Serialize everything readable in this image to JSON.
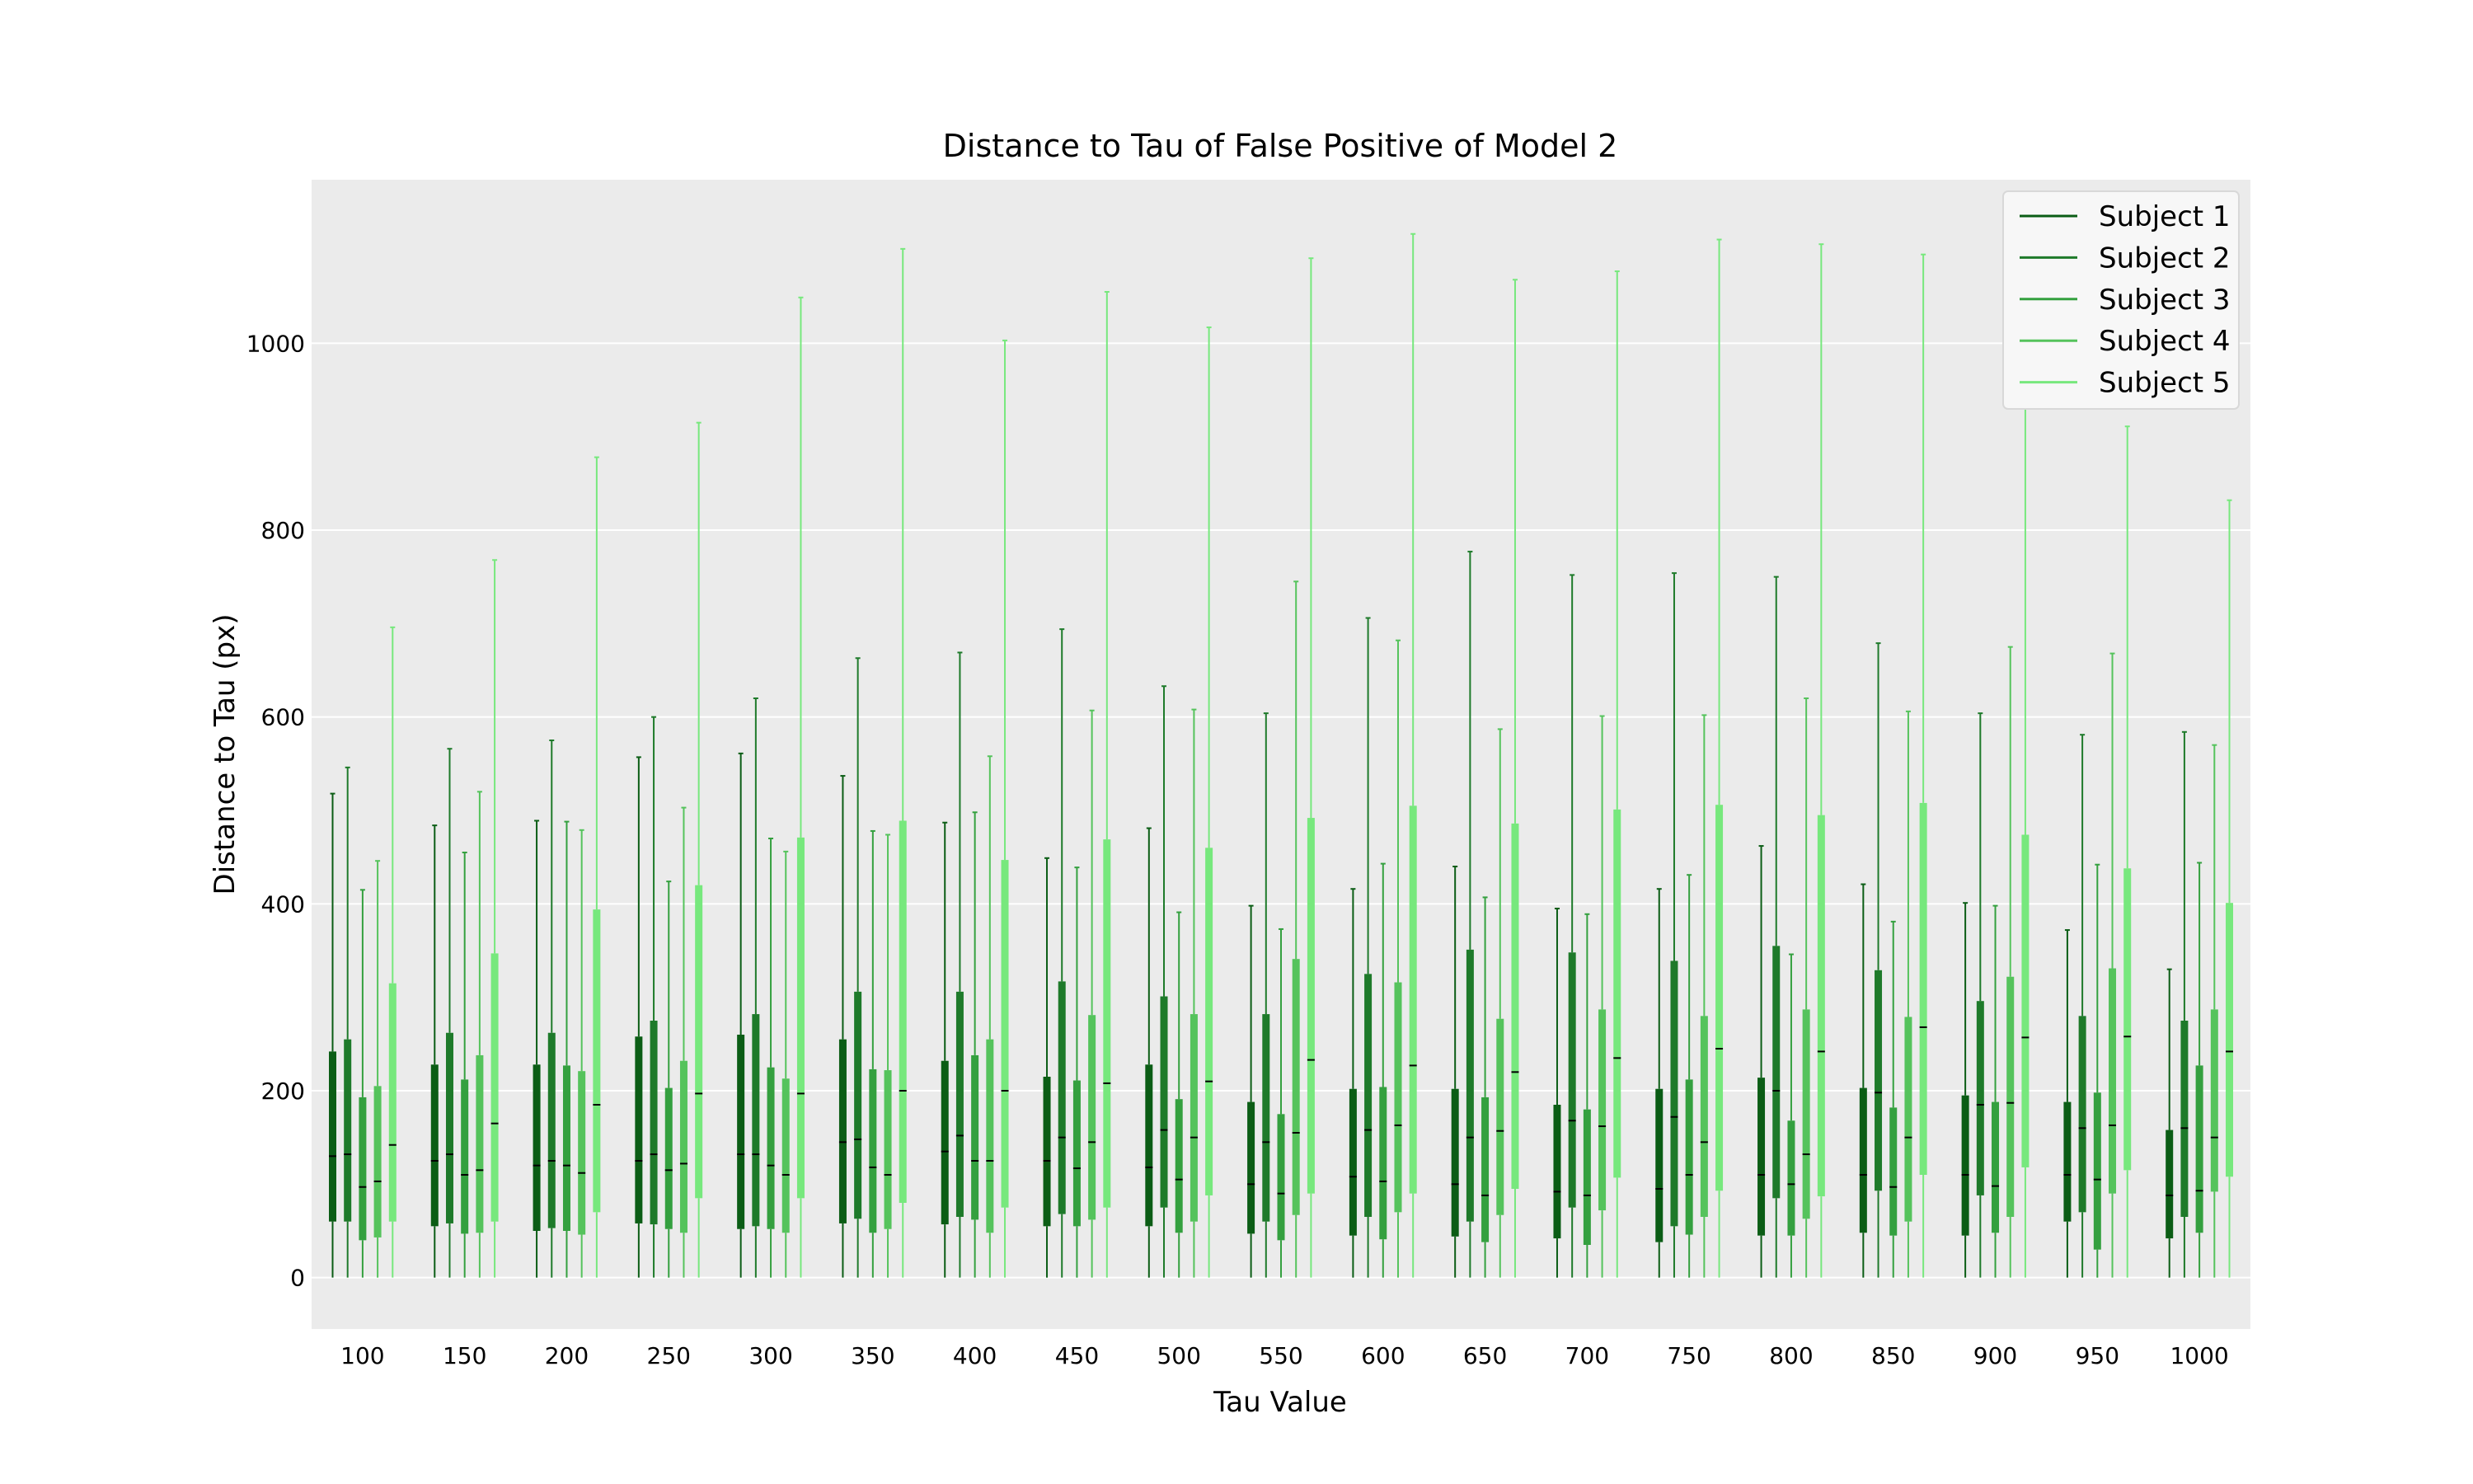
{
  "chart_data": {
    "type": "boxplot",
    "title": "Distance to Tau of False Positive of Model 2",
    "xlabel": "Tau Value",
    "ylabel": "Distance to Tau (px)",
    "ylim": [
      -55,
      1175
    ],
    "yticks": [
      0,
      200,
      400,
      600,
      800,
      1000
    ],
    "grid": true,
    "legend_position": "top-right",
    "categories": [
      "100",
      "150",
      "200",
      "250",
      "300",
      "350",
      "400",
      "450",
      "500",
      "550",
      "600",
      "650",
      "700",
      "750",
      "800",
      "850",
      "900",
      "950",
      "1000"
    ],
    "series": [
      {
        "name": "Subject 1",
        "color": "#0b5d15",
        "boxes": [
          {
            "whislo": 0,
            "q1": 60,
            "med": 130,
            "q3": 242,
            "whishi": 518
          },
          {
            "whislo": 0,
            "q1": 55,
            "med": 125,
            "q3": 228,
            "whishi": 484
          },
          {
            "whislo": 0,
            "q1": 50,
            "med": 120,
            "q3": 228,
            "whishi": 489
          },
          {
            "whislo": 0,
            "q1": 58,
            "med": 125,
            "q3": 258,
            "whishi": 557
          },
          {
            "whislo": 0,
            "q1": 52,
            "med": 132,
            "q3": 260,
            "whishi": 561
          },
          {
            "whislo": 0,
            "q1": 58,
            "med": 145,
            "q3": 255,
            "whishi": 537
          },
          {
            "whislo": 0,
            "q1": 57,
            "med": 135,
            "q3": 232,
            "whishi": 487
          },
          {
            "whislo": 0,
            "q1": 55,
            "med": 125,
            "q3": 215,
            "whishi": 449
          },
          {
            "whislo": 0,
            "q1": 55,
            "med": 118,
            "q3": 228,
            "whishi": 481
          },
          {
            "whislo": 0,
            "q1": 47,
            "med": 100,
            "q3": 188,
            "whishi": 398
          },
          {
            "whislo": 0,
            "q1": 45,
            "med": 108,
            "q3": 202,
            "whishi": 416
          },
          {
            "whislo": 0,
            "q1": 44,
            "med": 100,
            "q3": 202,
            "whishi": 440
          },
          {
            "whislo": 0,
            "q1": 42,
            "med": 92,
            "q3": 185,
            "whishi": 395
          },
          {
            "whislo": 0,
            "q1": 38,
            "med": 95,
            "q3": 202,
            "whishi": 416
          },
          {
            "whislo": 0,
            "q1": 45,
            "med": 110,
            "q3": 214,
            "whishi": 462
          },
          {
            "whislo": 0,
            "q1": 48,
            "med": 110,
            "q3": 203,
            "whishi": 421
          },
          {
            "whislo": 0,
            "q1": 45,
            "med": 110,
            "q3": 195,
            "whishi": 401
          },
          {
            "whislo": 0,
            "q1": 60,
            "med": 110,
            "q3": 188,
            "whishi": 372
          },
          {
            "whislo": 0,
            "q1": 42,
            "med": 88,
            "q3": 158,
            "whishi": 330
          }
        ]
      },
      {
        "name": "Subject 2",
        "color": "#1e7a2a",
        "boxes": [
          {
            "whislo": 0,
            "q1": 60,
            "med": 132,
            "q3": 255,
            "whishi": 546
          },
          {
            "whislo": 0,
            "q1": 58,
            "med": 132,
            "q3": 262,
            "whishi": 566
          },
          {
            "whislo": 0,
            "q1": 53,
            "med": 125,
            "q3": 262,
            "whishi": 575
          },
          {
            "whislo": 0,
            "q1": 57,
            "med": 132,
            "q3": 275,
            "whishi": 600
          },
          {
            "whislo": 0,
            "q1": 55,
            "med": 132,
            "q3": 282,
            "whishi": 620
          },
          {
            "whislo": 0,
            "q1": 63,
            "med": 148,
            "q3": 306,
            "whishi": 663
          },
          {
            "whislo": 0,
            "q1": 65,
            "med": 152,
            "q3": 306,
            "whishi": 669
          },
          {
            "whislo": 0,
            "q1": 68,
            "med": 150,
            "q3": 317,
            "whishi": 694
          },
          {
            "whislo": 0,
            "q1": 75,
            "med": 158,
            "q3": 301,
            "whishi": 633
          },
          {
            "whislo": 0,
            "q1": 60,
            "med": 145,
            "q3": 282,
            "whishi": 604
          },
          {
            "whislo": 0,
            "q1": 65,
            "med": 158,
            "q3": 325,
            "whishi": 706
          },
          {
            "whislo": 0,
            "q1": 60,
            "med": 150,
            "q3": 351,
            "whishi": 777
          },
          {
            "whislo": 0,
            "q1": 75,
            "med": 168,
            "q3": 348,
            "whishi": 752
          },
          {
            "whislo": 0,
            "q1": 55,
            "med": 172,
            "q3": 339,
            "whishi": 754
          },
          {
            "whislo": 0,
            "q1": 85,
            "med": 200,
            "q3": 355,
            "whishi": 750
          },
          {
            "whislo": 0,
            "q1": 93,
            "med": 198,
            "q3": 329,
            "whishi": 679
          },
          {
            "whislo": 0,
            "q1": 88,
            "med": 185,
            "q3": 296,
            "whishi": 604
          },
          {
            "whislo": 0,
            "q1": 70,
            "med": 160,
            "q3": 280,
            "whishi": 581
          },
          {
            "whislo": 0,
            "q1": 65,
            "med": 160,
            "q3": 275,
            "whishi": 584
          }
        ]
      },
      {
        "name": "Subject 3",
        "color": "#34a03f",
        "boxes": [
          {
            "whislo": 0,
            "q1": 40,
            "med": 97,
            "q3": 193,
            "whishi": 415
          },
          {
            "whislo": 0,
            "q1": 47,
            "med": 110,
            "q3": 212,
            "whishi": 455
          },
          {
            "whislo": 0,
            "q1": 50,
            "med": 120,
            "q3": 227,
            "whishi": 488
          },
          {
            "whislo": 0,
            "q1": 52,
            "med": 115,
            "q3": 203,
            "whishi": 424
          },
          {
            "whislo": 0,
            "q1": 52,
            "med": 120,
            "q3": 225,
            "whishi": 470
          },
          {
            "whislo": 0,
            "q1": 48,
            "med": 118,
            "q3": 223,
            "whishi": 478
          },
          {
            "whislo": 0,
            "q1": 62,
            "med": 125,
            "q3": 238,
            "whishi": 498
          },
          {
            "whislo": 0,
            "q1": 55,
            "med": 117,
            "q3": 211,
            "whishi": 439
          },
          {
            "whislo": 0,
            "q1": 48,
            "med": 105,
            "q3": 191,
            "whishi": 391
          },
          {
            "whislo": 0,
            "q1": 40,
            "med": 90,
            "q3": 175,
            "whishi": 373
          },
          {
            "whislo": 0,
            "q1": 41,
            "med": 103,
            "q3": 204,
            "whishi": 443
          },
          {
            "whislo": 0,
            "q1": 38,
            "med": 88,
            "q3": 193,
            "whishi": 407
          },
          {
            "whislo": 0,
            "q1": 35,
            "med": 88,
            "q3": 180,
            "whishi": 389
          },
          {
            "whislo": 0,
            "q1": 46,
            "med": 110,
            "q3": 212,
            "whishi": 431
          },
          {
            "whislo": 0,
            "q1": 45,
            "med": 100,
            "q3": 168,
            "whishi": 346
          },
          {
            "whislo": 0,
            "q1": 45,
            "med": 97,
            "q3": 182,
            "whishi": 381
          },
          {
            "whislo": 0,
            "q1": 48,
            "med": 98,
            "q3": 188,
            "whishi": 398
          },
          {
            "whislo": 0,
            "q1": 30,
            "med": 105,
            "q3": 198,
            "whishi": 442
          },
          {
            "whislo": 0,
            "q1": 48,
            "med": 93,
            "q3": 227,
            "whishi": 444
          }
        ]
      },
      {
        "name": "Subject 4",
        "color": "#55c35c",
        "boxes": [
          {
            "whislo": 0,
            "q1": 43,
            "med": 103,
            "q3": 205,
            "whishi": 446
          },
          {
            "whislo": 0,
            "q1": 48,
            "med": 115,
            "q3": 238,
            "whishi": 520
          },
          {
            "whislo": 0,
            "q1": 46,
            "med": 112,
            "q3": 221,
            "whishi": 479
          },
          {
            "whislo": 0,
            "q1": 48,
            "med": 122,
            "q3": 232,
            "whishi": 503
          },
          {
            "whislo": 0,
            "q1": 48,
            "med": 110,
            "q3": 213,
            "whishi": 456
          },
          {
            "whislo": 0,
            "q1": 52,
            "med": 110,
            "q3": 222,
            "whishi": 474
          },
          {
            "whislo": 0,
            "q1": 48,
            "med": 125,
            "q3": 255,
            "whishi": 558
          },
          {
            "whislo": 0,
            "q1": 62,
            "med": 145,
            "q3": 281,
            "whishi": 607
          },
          {
            "whislo": 0,
            "q1": 60,
            "med": 150,
            "q3": 282,
            "whishi": 608
          },
          {
            "whislo": 0,
            "q1": 67,
            "med": 155,
            "q3": 341,
            "whishi": 745
          },
          {
            "whislo": 0,
            "q1": 70,
            "med": 163,
            "q3": 316,
            "whishi": 682
          },
          {
            "whislo": 0,
            "q1": 67,
            "med": 157,
            "q3": 277,
            "whishi": 587
          },
          {
            "whislo": 0,
            "q1": 72,
            "med": 162,
            "q3": 287,
            "whishi": 601
          },
          {
            "whislo": 0,
            "q1": 65,
            "med": 145,
            "q3": 280,
            "whishi": 602
          },
          {
            "whislo": 0,
            "q1": 63,
            "med": 132,
            "q3": 287,
            "whishi": 620
          },
          {
            "whislo": 0,
            "q1": 60,
            "med": 150,
            "q3": 279,
            "whishi": 606
          },
          {
            "whislo": 0,
            "q1": 65,
            "med": 187,
            "q3": 322,
            "whishi": 675
          },
          {
            "whislo": 0,
            "q1": 90,
            "med": 163,
            "q3": 331,
            "whishi": 668
          },
          {
            "whislo": 0,
            "q1": 92,
            "med": 150,
            "q3": 287,
            "whishi": 570
          }
        ]
      },
      {
        "name": "Subject 5",
        "color": "#77e87d",
        "boxes": [
          {
            "whislo": 0,
            "q1": 60,
            "med": 142,
            "q3": 315,
            "whishi": 696
          },
          {
            "whislo": 0,
            "q1": 60,
            "med": 165,
            "q3": 347,
            "whishi": 768
          },
          {
            "whislo": 0,
            "q1": 70,
            "med": 185,
            "q3": 394,
            "whishi": 878
          },
          {
            "whislo": 0,
            "q1": 85,
            "med": 197,
            "q3": 420,
            "whishi": 915
          },
          {
            "whislo": 0,
            "q1": 85,
            "med": 197,
            "q3": 471,
            "whishi": 1049
          },
          {
            "whislo": 0,
            "q1": 80,
            "med": 200,
            "q3": 489,
            "whishi": 1101
          },
          {
            "whislo": 0,
            "q1": 75,
            "med": 200,
            "q3": 447,
            "whishi": 1003
          },
          {
            "whislo": 0,
            "q1": 75,
            "med": 208,
            "q3": 469,
            "whishi": 1055
          },
          {
            "whislo": 0,
            "q1": 88,
            "med": 210,
            "q3": 460,
            "whishi": 1017
          },
          {
            "whislo": 0,
            "q1": 90,
            "med": 233,
            "q3": 492,
            "whishi": 1091
          },
          {
            "whislo": 0,
            "q1": 90,
            "med": 227,
            "q3": 505,
            "whishi": 1117
          },
          {
            "whislo": 0,
            "q1": 95,
            "med": 220,
            "q3": 486,
            "whishi": 1068
          },
          {
            "whislo": 0,
            "q1": 107,
            "med": 235,
            "q3": 501,
            "whishi": 1077
          },
          {
            "whislo": 0,
            "q1": 93,
            "med": 245,
            "q3": 506,
            "whishi": 1111
          },
          {
            "whislo": 0,
            "q1": 87,
            "med": 242,
            "q3": 495,
            "whishi": 1106
          },
          {
            "whislo": 0,
            "q1": 110,
            "med": 268,
            "q3": 508,
            "whishi": 1095
          },
          {
            "whislo": 0,
            "q1": 118,
            "med": 257,
            "q3": 474,
            "whishi": 1008
          },
          {
            "whislo": 0,
            "q1": 115,
            "med": 258,
            "q3": 438,
            "whishi": 911
          },
          {
            "whislo": 0,
            "q1": 108,
            "med": 242,
            "q3": 401,
            "whishi": 832
          }
        ]
      }
    ]
  }
}
